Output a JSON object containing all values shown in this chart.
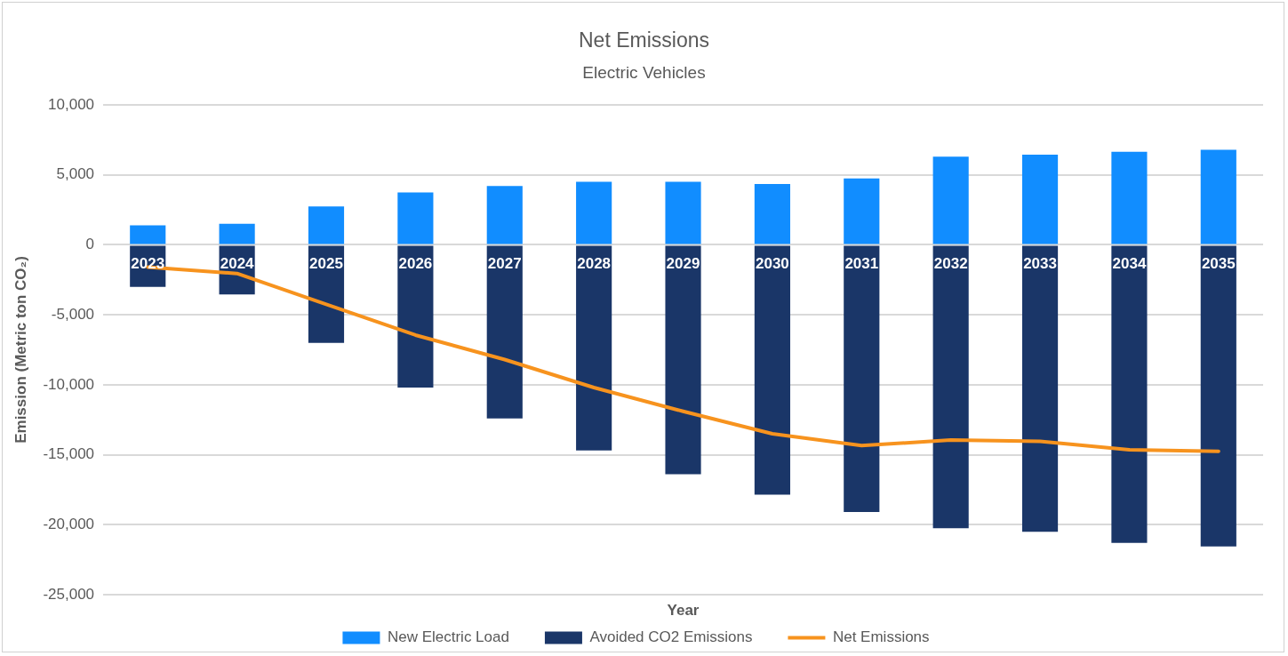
{
  "chart_data": {
    "type": "bar",
    "title": "Net Emissions",
    "subtitle": "Electric Vehicles",
    "xlabel": "Year",
    "ylabel": "Emission (Metric ton CO₂)",
    "categories": [
      "2023",
      "2024",
      "2025",
      "2026",
      "2027",
      "2028",
      "2029",
      "2030",
      "2031",
      "2032",
      "2033",
      "2034",
      "2035"
    ],
    "stacked": true,
    "series": [
      {
        "name": "New Electric Load",
        "color": "#118dff",
        "values": [
          1400,
          1500,
          2750,
          3750,
          4200,
          4500,
          4500,
          4350,
          4750,
          6300,
          6450,
          6650,
          6800
        ]
      },
      {
        "name": "Avoided CO2 Emissions",
        "color": "#1a3668",
        "values": [
          -3000,
          -3550,
          -7000,
          -10200,
          -12400,
          -14700,
          -16400,
          -17850,
          -19100,
          -20250,
          -20500,
          -21300,
          -21550
        ]
      },
      {
        "name": "Net Emissions",
        "type": "line",
        "color": "#f7931e",
        "values": [
          -1600,
          -2050,
          -4250,
          -6450,
          -8200,
          -10200,
          -11900,
          -13500,
          -14350,
          -13950,
          -14050,
          -14650,
          -14750
        ]
      }
    ],
    "ylim": [
      -25000,
      10000
    ],
    "yticks": [
      {
        "value": -25000,
        "label": "-25,000"
      },
      {
        "value": -20000,
        "label": "-20,000"
      },
      {
        "value": -15000,
        "label": "-15,000"
      },
      {
        "value": -10000,
        "label": "-10,000"
      },
      {
        "value": -5000,
        "label": "-5,000"
      },
      0,
      {
        "value": 5000,
        "label": "5,000"
      },
      {
        "value": 10000,
        "label": "10,000"
      }
    ],
    "grid": "y",
    "legend": "bottom",
    "marker": "none",
    "line_style": "solid"
  }
}
